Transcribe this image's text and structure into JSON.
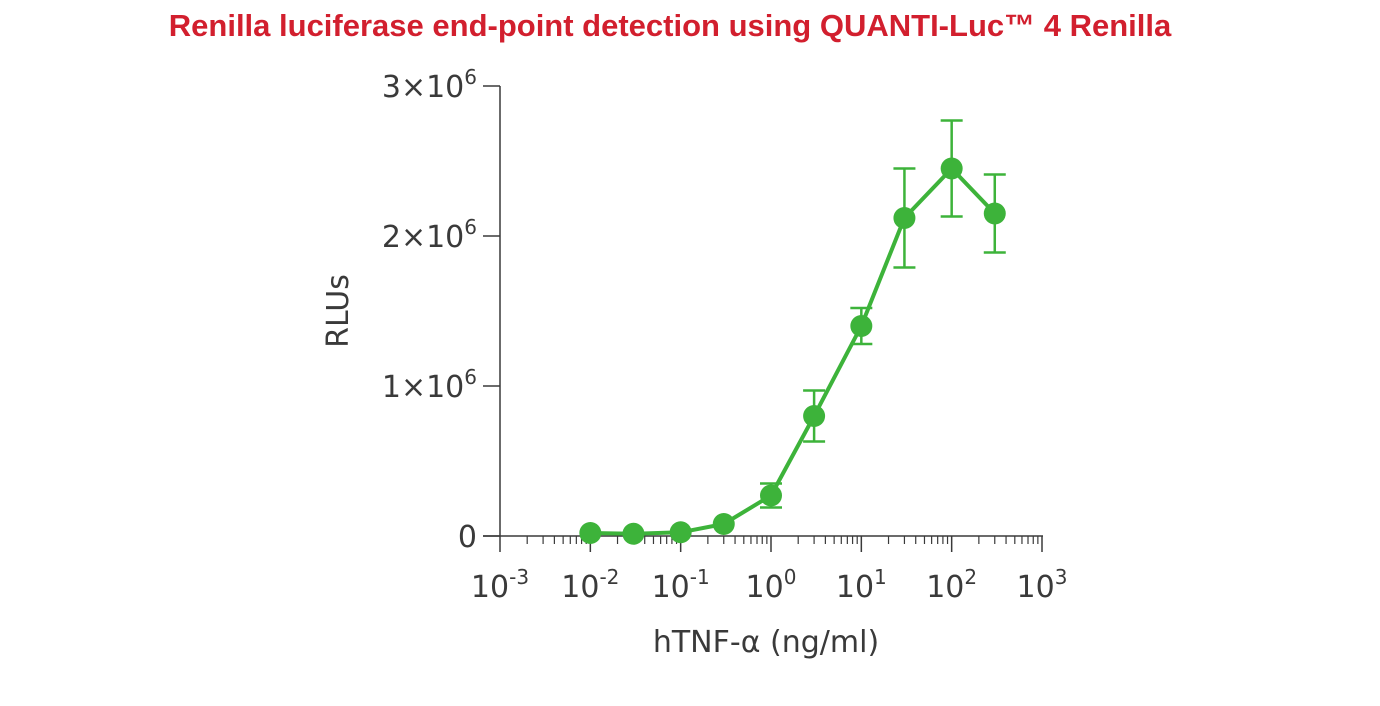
{
  "chart_data": {
    "type": "line",
    "title": "Renilla luciferase end-point detection using QUANTI-Luc™ 4 Renilla",
    "xlabel": "hTNF-α (ng/ml)",
    "ylabel": "RLUs",
    "x_scale": "log",
    "xlim": [
      0.001,
      1000
    ],
    "ylim": [
      0,
      3000000
    ],
    "x_ticks": [
      {
        "base": "10",
        "exp": "-3",
        "value": 0.001
      },
      {
        "base": "10",
        "exp": "-2",
        "value": 0.01
      },
      {
        "base": "10",
        "exp": "-1",
        "value": 0.1
      },
      {
        "base": "10",
        "exp": "0",
        "value": 1
      },
      {
        "base": "10",
        "exp": "1",
        "value": 10
      },
      {
        "base": "10",
        "exp": "2",
        "value": 100
      },
      {
        "base": "10",
        "exp": "3",
        "value": 1000
      }
    ],
    "y_ticks": [
      {
        "label": "0",
        "exp": "",
        "value": 0
      },
      {
        "label": "1×10",
        "exp": "6",
        "value": 1000000
      },
      {
        "label": "2×10",
        "exp": "6",
        "value": 2000000
      },
      {
        "label": "3×10",
        "exp": "6",
        "value": 3000000
      }
    ],
    "grid": false,
    "color": "#3db33a",
    "series": [
      {
        "x": [
          0.01,
          0.03,
          0.1,
          0.3,
          1,
          3,
          10,
          30,
          100,
          300
        ],
        "y": [
          20000,
          15000,
          25000,
          80000,
          270000,
          800000,
          1400000,
          2120000,
          2450000,
          2150000
        ],
        "err": [
          0,
          0,
          0,
          0,
          80000,
          170000,
          120000,
          330000,
          320000,
          260000
        ]
      }
    ]
  }
}
